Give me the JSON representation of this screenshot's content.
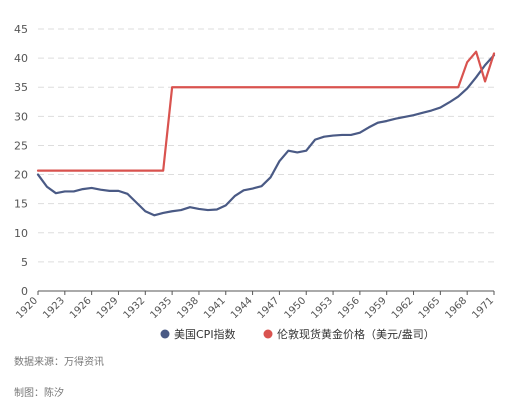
{
  "source": "数据来源：万得资讯",
  "credit": "制图：陈汐",
  "colors": {
    "cpi": "#4a5a85",
    "gold": "#d9534f",
    "grid": "#dddddd",
    "axis": "#555555",
    "text": "#555555"
  },
  "chart_data": {
    "type": "line",
    "title": "",
    "xlabel": "",
    "ylabel": "",
    "x": [
      1920,
      1921,
      1922,
      1923,
      1924,
      1925,
      1926,
      1927,
      1928,
      1929,
      1930,
      1931,
      1932,
      1933,
      1934,
      1935,
      1936,
      1937,
      1938,
      1939,
      1940,
      1941,
      1942,
      1943,
      1944,
      1945,
      1946,
      1947,
      1948,
      1949,
      1950,
      1951,
      1952,
      1953,
      1954,
      1955,
      1956,
      1957,
      1958,
      1959,
      1960,
      1961,
      1962,
      1963,
      1964,
      1965,
      1966,
      1967,
      1968,
      1969,
      1970,
      1971
    ],
    "xticks": [
      1920,
      1923,
      1926,
      1929,
      1932,
      1935,
      1938,
      1941,
      1944,
      1947,
      1950,
      1953,
      1956,
      1959,
      1962,
      1965,
      1968,
      1971
    ],
    "ylim": [
      0,
      45
    ],
    "yticks": [
      0,
      5,
      10,
      15,
      20,
      25,
      30,
      35,
      40,
      45
    ],
    "grid": true,
    "legend_position": "bottom-center",
    "series": [
      {
        "name": "美国CPI指数",
        "color": "#4a5a85",
        "values": [
          20.0,
          17.9,
          16.8,
          17.1,
          17.1,
          17.5,
          17.7,
          17.4,
          17.2,
          17.2,
          16.7,
          15.2,
          13.7,
          13.0,
          13.4,
          13.7,
          13.9,
          14.4,
          14.1,
          13.9,
          14.0,
          14.7,
          16.3,
          17.3,
          17.6,
          18.0,
          19.5,
          22.3,
          24.1,
          23.8,
          24.1,
          26.0,
          26.5,
          26.7,
          26.8,
          26.8,
          27.2,
          28.1,
          28.9,
          29.2,
          29.6,
          29.9,
          30.2,
          30.6,
          31.0,
          31.5,
          32.4,
          33.4,
          34.8,
          36.7,
          38.8,
          40.5
        ]
      },
      {
        "name": "伦敦现货黄金价格（美元/盎司）",
        "color": "#d9534f",
        "values": [
          20.67,
          20.67,
          20.67,
          20.67,
          20.67,
          20.67,
          20.67,
          20.67,
          20.67,
          20.67,
          20.67,
          20.67,
          20.67,
          20.67,
          20.67,
          35,
          35,
          35,
          35,
          35,
          35,
          35,
          35,
          35,
          35,
          35,
          35,
          35,
          35,
          35,
          35,
          35,
          35,
          35,
          35,
          35,
          35,
          35,
          35,
          35,
          35,
          35,
          35,
          35,
          35,
          35,
          35,
          35,
          39.3,
          41.1,
          36.0,
          40.8
        ]
      }
    ]
  }
}
